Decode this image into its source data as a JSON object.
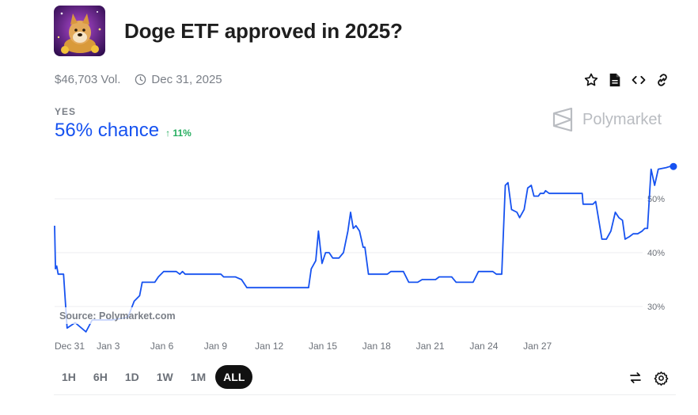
{
  "market": {
    "title": "Doge ETF approved in 2025?",
    "volume": "$46,703 Vol.",
    "end_date": "Dec 31, 2025",
    "thumbnail_icon": "doge-coin-icon"
  },
  "actions": [
    "star-icon",
    "document-icon",
    "embed-code-icon",
    "link-icon"
  ],
  "outcome": {
    "label": "YES",
    "chance": "56% chance",
    "delta": "↑ 11%",
    "accent": "#1652f0",
    "delta_color": "#27ae60"
  },
  "brand": {
    "name": "Polymarket"
  },
  "source_note": "Source: Polymarket.com",
  "range_tabs": [
    {
      "label": "1H",
      "active": false
    },
    {
      "label": "6H",
      "active": false
    },
    {
      "label": "1D",
      "active": false
    },
    {
      "label": "1W",
      "active": false
    },
    {
      "label": "1M",
      "active": false
    },
    {
      "label": "ALL",
      "active": true
    }
  ],
  "bottom_actions": [
    "swap-arrows-icon",
    "settings-gear-icon"
  ],
  "chart_data": {
    "type": "line",
    "x_ticks": [
      "Dec 31",
      "Jan 3",
      "Jan 6",
      "Jan 9",
      "Jan 12",
      "Jan 15",
      "Jan 18",
      "Jan 21",
      "Jan 24",
      "Jan 27"
    ],
    "y_ticks": [
      "30%",
      "40%",
      "50%"
    ],
    "y_tick_values": [
      30,
      40,
      50
    ],
    "ylim": [
      24,
      57.5
    ],
    "grid": "horizontal",
    "line_color": "#1652f0",
    "series": [
      {
        "values": [
          [
            0,
            45
          ],
          [
            0.05,
            37
          ],
          [
            0.12,
            37.5
          ],
          [
            0.2,
            36
          ],
          [
            0.5,
            36
          ],
          [
            0.7,
            26
          ],
          [
            1.15,
            27
          ],
          [
            1.75,
            25.3
          ],
          [
            2.1,
            27.5
          ],
          [
            2.6,
            27.5
          ],
          [
            3.2,
            27.5
          ],
          [
            4.1,
            28
          ],
          [
            4.45,
            31
          ],
          [
            4.75,
            32
          ],
          [
            4.9,
            34.5
          ],
          [
            5.6,
            34.5
          ],
          [
            5.8,
            35.5
          ],
          [
            6.1,
            36.5
          ],
          [
            6.8,
            36.5
          ],
          [
            7.0,
            36
          ],
          [
            7.15,
            36.5
          ],
          [
            7.3,
            36
          ],
          [
            9.3,
            36
          ],
          [
            9.45,
            35.5
          ],
          [
            10.1,
            35.5
          ],
          [
            10.45,
            35
          ],
          [
            10.75,
            33.5
          ],
          [
            14.2,
            33.5
          ],
          [
            14.35,
            37
          ],
          [
            14.6,
            38.5
          ],
          [
            14.75,
            44
          ],
          [
            14.95,
            38
          ],
          [
            15.15,
            40
          ],
          [
            15.35,
            40
          ],
          [
            15.55,
            39
          ],
          [
            15.9,
            39
          ],
          [
            16.15,
            40
          ],
          [
            16.4,
            44
          ],
          [
            16.55,
            47.5
          ],
          [
            16.7,
            44.5
          ],
          [
            16.85,
            45
          ],
          [
            17.05,
            44
          ],
          [
            17.25,
            41
          ],
          [
            17.35,
            41
          ],
          [
            17.55,
            36
          ],
          [
            18.6,
            36
          ],
          [
            18.8,
            36.5
          ],
          [
            19.5,
            36.5
          ],
          [
            19.8,
            34.5
          ],
          [
            20.3,
            34.5
          ],
          [
            20.55,
            35
          ],
          [
            21.3,
            35
          ],
          [
            21.5,
            35.5
          ],
          [
            22.2,
            35.5
          ],
          [
            22.45,
            34.5
          ],
          [
            23.4,
            34.5
          ],
          [
            23.7,
            36.5
          ],
          [
            24.5,
            36.5
          ],
          [
            24.7,
            36
          ],
          [
            25.0,
            36
          ],
          [
            25.2,
            52.5
          ],
          [
            25.35,
            53
          ],
          [
            25.55,
            48
          ],
          [
            25.85,
            47.5
          ],
          [
            26.0,
            46.5
          ],
          [
            26.25,
            48
          ],
          [
            26.45,
            52
          ],
          [
            26.65,
            52.5
          ],
          [
            26.8,
            50.5
          ],
          [
            27.05,
            50.5
          ],
          [
            27.15,
            51
          ],
          [
            27.35,
            51
          ],
          [
            27.45,
            51.5
          ],
          [
            27.65,
            51
          ],
          [
            29.5,
            51
          ],
          [
            29.55,
            49
          ],
          [
            30.1,
            49
          ],
          [
            30.25,
            49.5
          ],
          [
            30.6,
            42.5
          ],
          [
            30.85,
            42.5
          ],
          [
            31.1,
            44
          ],
          [
            31.35,
            47.5
          ],
          [
            31.55,
            46.5
          ],
          [
            31.75,
            46
          ],
          [
            31.9,
            42.5
          ],
          [
            32.15,
            43
          ],
          [
            32.35,
            43.5
          ],
          [
            32.6,
            43.5
          ],
          [
            32.85,
            44
          ],
          [
            33.0,
            44.5
          ],
          [
            33.15,
            44.5
          ],
          [
            33.35,
            55.5
          ],
          [
            33.55,
            52.5
          ],
          [
            33.75,
            55.5
          ],
          [
            34.2,
            55.8
          ],
          [
            34.4,
            56
          ],
          [
            34.6,
            56
          ]
        ]
      }
    ]
  }
}
